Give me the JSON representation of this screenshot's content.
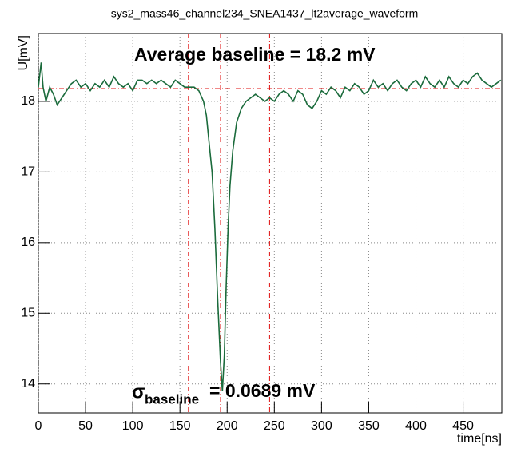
{
  "chart_data": {
    "type": "line",
    "title": "sys2_mass46_channel234_SNEA1437_lt2average_waveform",
    "x_label": "time[ns]",
    "y_label": "U[mV]",
    "xlim": [
      0,
      491
    ],
    "ylim": [
      13.59,
      18.96
    ],
    "xticks": [
      0,
      50,
      100,
      150,
      200,
      250,
      300,
      350,
      400,
      450
    ],
    "yticks": [
      14,
      15,
      16,
      17,
      18
    ],
    "grid": true,
    "x": [
      0,
      3,
      5,
      8,
      12,
      16,
      20,
      25,
      30,
      35,
      40,
      45,
      50,
      55,
      60,
      65,
      70,
      75,
      80,
      85,
      90,
      95,
      100,
      105,
      110,
      115,
      120,
      125,
      130,
      135,
      140,
      145,
      150,
      155,
      160,
      165,
      170,
      175,
      178,
      181,
      184,
      187,
      190,
      193,
      195,
      197,
      199,
      201,
      203,
      206,
      210,
      215,
      220,
      225,
      230,
      235,
      240,
      245,
      250,
      255,
      260,
      265,
      270,
      275,
      280,
      285,
      290,
      295,
      300,
      305,
      310,
      315,
      320,
      325,
      330,
      335,
      340,
      345,
      350,
      355,
      360,
      365,
      370,
      375,
      380,
      385,
      390,
      395,
      400,
      405,
      410,
      415,
      420,
      425,
      430,
      435,
      440,
      445,
      450,
      455,
      460,
      465,
      470,
      475,
      480,
      485,
      490
    ],
    "series": [
      {
        "name": "waveform",
        "color": "#1b6b3c",
        "values": [
          18.2,
          18.55,
          18.2,
          18.0,
          18.2,
          18.1,
          17.95,
          18.05,
          18.15,
          18.25,
          18.3,
          18.2,
          18.25,
          18.15,
          18.25,
          18.2,
          18.3,
          18.2,
          18.35,
          18.25,
          18.2,
          18.25,
          18.15,
          18.3,
          18.3,
          18.25,
          18.3,
          18.25,
          18.3,
          18.25,
          18.2,
          18.3,
          18.25,
          18.2,
          18.2,
          18.2,
          18.15,
          18.0,
          17.8,
          17.4,
          17.0,
          16.2,
          15.2,
          14.3,
          13.9,
          14.4,
          15.4,
          16.2,
          16.8,
          17.3,
          17.7,
          17.9,
          18.0,
          18.05,
          18.1,
          18.05,
          18.0,
          18.05,
          18.0,
          18.1,
          18.15,
          18.1,
          18.0,
          18.15,
          18.1,
          17.95,
          17.9,
          18.0,
          18.15,
          18.1,
          18.2,
          18.15,
          18.05,
          18.2,
          18.15,
          18.25,
          18.2,
          18.1,
          18.15,
          18.3,
          18.2,
          18.25,
          18.15,
          18.25,
          18.3,
          18.2,
          18.15,
          18.25,
          18.3,
          18.2,
          18.35,
          18.25,
          18.2,
          18.3,
          18.2,
          18.35,
          18.25,
          18.2,
          18.3,
          18.25,
          18.35,
          18.4,
          18.3,
          18.25,
          18.2,
          18.25,
          18.3
        ]
      }
    ],
    "reference_lines": {
      "color": "#e01010",
      "y": [
        18.18
      ],
      "x": [
        159,
        193,
        245
      ]
    },
    "annotations": {
      "baseline": "Average baseline =  18.2 mV",
      "sigma_symbol": "σ",
      "sigma_subscript": "baseline",
      "sigma_text": "= 0.0689 mV"
    }
  }
}
